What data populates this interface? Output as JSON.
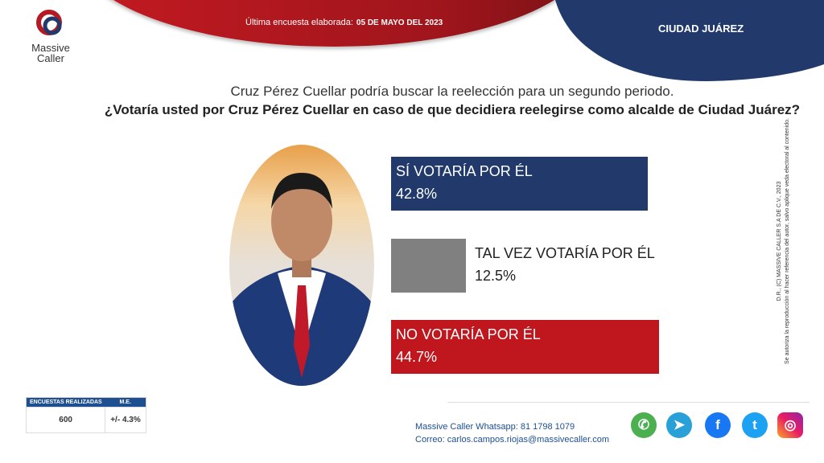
{
  "header": {
    "date_label": "Última encuesta elaborada:",
    "date_value": "05 DE MAYO DEL 2023",
    "city": "CIUDAD JUÁREZ",
    "logo_text": [
      "Massive",
      "Caller"
    ]
  },
  "question": {
    "line1": "Cruz Pérez Cuellar podría buscar la reelección para un segundo periodo.",
    "line2": "¿Votaría usted por Cruz Pérez Cuellar en caso de que decidiera reelegirse como alcalde de Ciudad Juárez?"
  },
  "chart_data": {
    "type": "bar",
    "orientation": "horizontal",
    "categories": [
      "SÍ VOTARÍA POR ÉL",
      "TAL VEZ VOTARÍA POR ÉL",
      "NO VOTARÍA POR ÉL"
    ],
    "values": [
      42.8,
      12.5,
      44.7
    ],
    "labels": [
      "42.8%",
      "12.5%",
      "44.7%"
    ],
    "colors": [
      "#223a6b",
      "#808080",
      "#c0161e"
    ],
    "unit": "%"
  },
  "stats": {
    "col1_header": "ENCUESTAS REALIZADAS",
    "col2_header": "M.E.",
    "surveys": "600",
    "margin": "+/- 4.3%"
  },
  "legal": {
    "line1": "D.R., (C) MASSIVE CALLER S.A DE C.V., 2023",
    "line2": "Se autoriza la reproducción al hacer referencia del autor, salvo aplique veda electoral al contenido."
  },
  "contact": {
    "whatsapp": "Massive Caller Whatsapp: 81 1798 1079",
    "email": "Correo: carlos.campos.riojas@massivecaller.com"
  },
  "social_icons": [
    "whatsapp-icon",
    "telegram-icon",
    "facebook-icon",
    "twitter-icon",
    "instagram-icon"
  ]
}
